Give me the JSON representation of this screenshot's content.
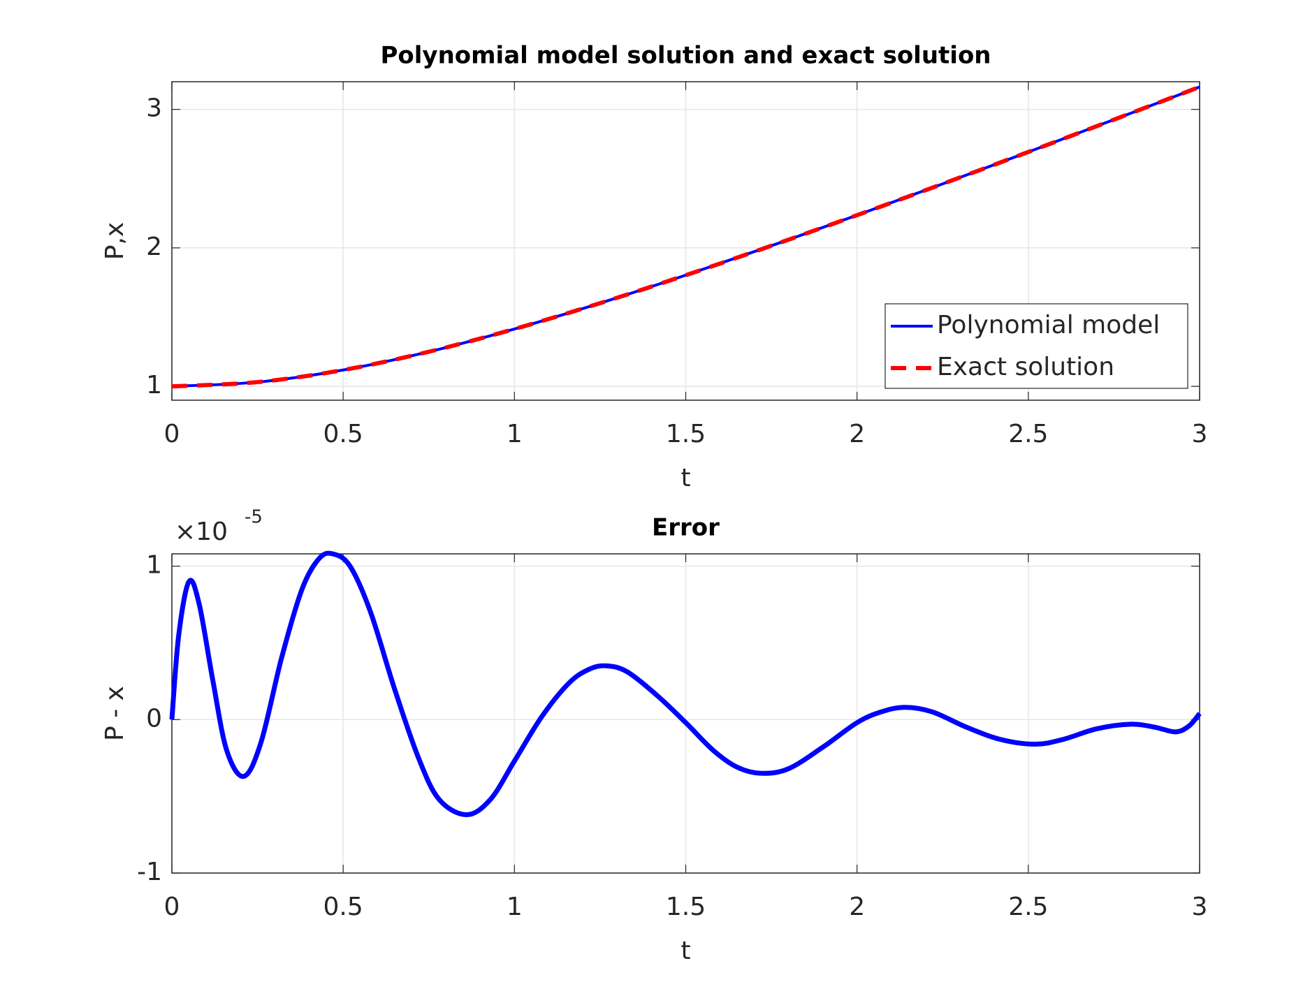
{
  "chart_data": [
    {
      "type": "line",
      "title": "Polynomial model solution and exact solution",
      "xlabel": "t",
      "ylabel": "P,x",
      "x": [
        0,
        0.25,
        0.5,
        0.75,
        1,
        1.25,
        1.5,
        1.75,
        2,
        2.25,
        2.5,
        2.75,
        3
      ],
      "series": [
        {
          "name": "Polynomial model",
          "color": "#0000ff",
          "linestyle": "solid",
          "values": [
            1,
            1.0308,
            1.118,
            1.25,
            1.4142,
            1.6008,
            1.8028,
            2.0156,
            2.2361,
            2.4622,
            2.6926,
            2.9262,
            3.1623
          ]
        },
        {
          "name": "Exact solution",
          "color": "#ff0000",
          "linestyle": "dashed",
          "values": [
            1,
            1.0308,
            1.118,
            1.25,
            1.4142,
            1.6008,
            1.8028,
            2.0156,
            2.2361,
            2.4622,
            2.6926,
            2.9262,
            3.1623
          ]
        }
      ],
      "xlim": [
        0,
        3
      ],
      "ylim": [
        0.9,
        3.2
      ],
      "xticks": [
        0,
        0.5,
        1,
        1.5,
        2,
        2.5,
        3
      ],
      "yticks": [
        1,
        2,
        3
      ],
      "grid": true,
      "legend": "lower right"
    },
    {
      "type": "line",
      "title": "Error",
      "xlabel": "t",
      "ylabel": "P - x",
      "y_exponent": {
        "base": "×10",
        "power": "-5"
      },
      "x": [
        0,
        0.02,
        0.05,
        0.08,
        0.12,
        0.16,
        0.21,
        0.26,
        0.32,
        0.38,
        0.43,
        0.47,
        0.52,
        0.58,
        0.65,
        0.72,
        0.78,
        0.86,
        0.93,
        1.0,
        1.08,
        1.16,
        1.22,
        1.27,
        1.33,
        1.42,
        1.5,
        1.58,
        1.65,
        1.72,
        1.8,
        1.9,
        2.0,
        2.07,
        2.14,
        2.22,
        2.32,
        2.42,
        2.52,
        2.6,
        2.7,
        2.8,
        2.87,
        2.93,
        2.97,
        3.0
      ],
      "series": [
        {
          "name": null,
          "color": "#0000ff",
          "linestyle": "solid",
          "values": [
            0,
            0.55,
            0.9,
            0.75,
            0.25,
            -0.2,
            -0.37,
            -0.15,
            0.4,
            0.85,
            1.05,
            1.08,
            1.0,
            0.7,
            0.2,
            -0.25,
            -0.52,
            -0.62,
            -0.52,
            -0.27,
            0.02,
            0.24,
            0.33,
            0.35,
            0.31,
            0.15,
            -0.02,
            -0.2,
            -0.31,
            -0.35,
            -0.32,
            -0.18,
            -0.02,
            0.05,
            0.08,
            0.05,
            -0.05,
            -0.13,
            -0.16,
            -0.13,
            -0.06,
            -0.03,
            -0.05,
            -0.08,
            -0.04,
            0.04
          ]
        }
      ],
      "xlim": [
        0,
        3
      ],
      "ylim": [
        -1,
        1.08
      ],
      "xticks": [
        0,
        0.5,
        1,
        1.5,
        2,
        2.5,
        3
      ],
      "yticks": [
        -1,
        0,
        1
      ],
      "grid": true
    }
  ]
}
